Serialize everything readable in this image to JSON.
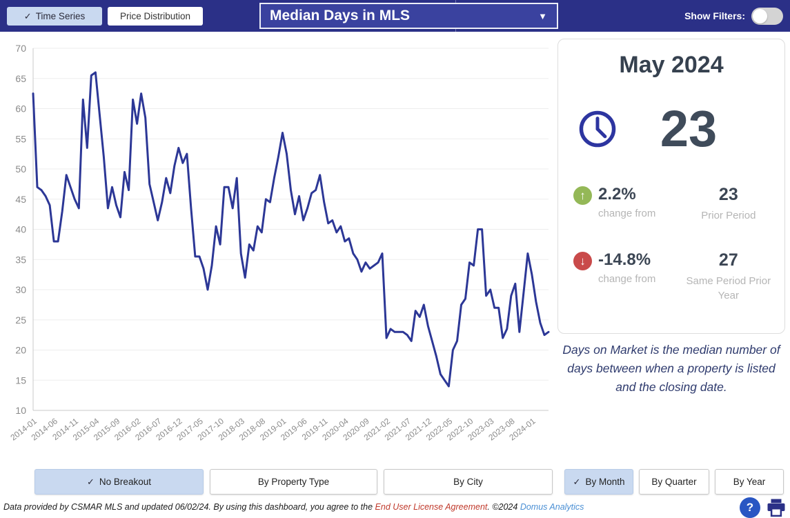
{
  "header": {
    "tabs": [
      {
        "label": "Time Series",
        "checked": true
      },
      {
        "label": "Price Distribution",
        "checked": false
      }
    ],
    "metric_dropdown": {
      "selected": "Median Days in MLS"
    },
    "show_filters_label": "Show Filters:",
    "filters_toggle": "off"
  },
  "icons": {
    "check": "✓",
    "caret_down": "▼",
    "up_arrow": "↑",
    "down_arrow": "↓",
    "help": "?"
  },
  "colors": {
    "header_bg": "#2b3087",
    "selected_button_bg": "#c9d9f0",
    "line": "#2c3796",
    "up": "#94b857",
    "down": "#c94a4a",
    "license_link": "#c0392b",
    "brand_link": "#4a8fd4"
  },
  "chart_data": {
    "type": "line",
    "title": "Median Days in MLS",
    "ylim": [
      10,
      70
    ],
    "ytick_step": 5,
    "xtick_every": 5,
    "grid": true,
    "legend": "none",
    "line_color": "#2c3796",
    "x": [
      "2014-01",
      "2014-02",
      "2014-03",
      "2014-04",
      "2014-05",
      "2014-06",
      "2014-07",
      "2014-08",
      "2014-09",
      "2014-10",
      "2014-11",
      "2014-12",
      "2015-01",
      "2015-02",
      "2015-03",
      "2015-04",
      "2015-05",
      "2015-06",
      "2015-07",
      "2015-08",
      "2015-09",
      "2015-10",
      "2015-11",
      "2015-12",
      "2016-01",
      "2016-02",
      "2016-03",
      "2016-04",
      "2016-05",
      "2016-06",
      "2016-07",
      "2016-08",
      "2016-09",
      "2016-10",
      "2016-11",
      "2016-12",
      "2017-01",
      "2017-02",
      "2017-03",
      "2017-04",
      "2017-05",
      "2017-06",
      "2017-07",
      "2017-08",
      "2017-09",
      "2017-10",
      "2017-11",
      "2017-12",
      "2018-01",
      "2018-02",
      "2018-03",
      "2018-04",
      "2018-05",
      "2018-06",
      "2018-07",
      "2018-08",
      "2018-09",
      "2018-10",
      "2018-11",
      "2018-12",
      "2019-01",
      "2019-02",
      "2019-03",
      "2019-04",
      "2019-05",
      "2019-06",
      "2019-07",
      "2019-08",
      "2019-09",
      "2019-10",
      "2019-11",
      "2019-12",
      "2020-01",
      "2020-02",
      "2020-03",
      "2020-04",
      "2020-05",
      "2020-06",
      "2020-07",
      "2020-08",
      "2020-09",
      "2020-10",
      "2020-11",
      "2020-12",
      "2021-01",
      "2021-02",
      "2021-03",
      "2021-04",
      "2021-05",
      "2021-06",
      "2021-07",
      "2021-08",
      "2021-09",
      "2021-10",
      "2021-11",
      "2021-12",
      "2022-01",
      "2022-02",
      "2022-03",
      "2022-04",
      "2022-05",
      "2022-06",
      "2022-07",
      "2022-08",
      "2022-09",
      "2022-10",
      "2022-11",
      "2022-12",
      "2023-01",
      "2023-02",
      "2023-03",
      "2023-04",
      "2023-05",
      "2023-06",
      "2023-07",
      "2023-08",
      "2023-09",
      "2023-10",
      "2023-11",
      "2023-12",
      "2024-01",
      "2024-02",
      "2024-03",
      "2024-04",
      "2024-05"
    ],
    "values": [
      62.5,
      47,
      46.5,
      45.5,
      44,
      38,
      38,
      43,
      49,
      47,
      45,
      43.5,
      61.5,
      53.5,
      65.5,
      66,
      59,
      52,
      43.5,
      47,
      44,
      42,
      49.5,
      46.5,
      61.5,
      57.5,
      62.5,
      58.5,
      47.5,
      44.5,
      41.5,
      44.5,
      48.5,
      46,
      50.5,
      53.5,
      51,
      52.5,
      43.5,
      35.5,
      35.5,
      33.5,
      30,
      34,
      40.5,
      37.5,
      47,
      47,
      43.5,
      48.5,
      36,
      32,
      37.5,
      36.5,
      40.5,
      39.5,
      45,
      44.5,
      48.5,
      52,
      56,
      52.5,
      46.5,
      42.5,
      45.5,
      41.5,
      43.5,
      46,
      46.5,
      49,
      44.5,
      41,
      41.5,
      39.5,
      40.5,
      38,
      38.5,
      36,
      35,
      33,
      34.5,
      33.5,
      34,
      34.5,
      36,
      22,
      23.5,
      23,
      23,
      23,
      22.5,
      21.5,
      26.5,
      25.5,
      27.5,
      24,
      21.5,
      19,
      16,
      15,
      14,
      20,
      21.5,
      27.5,
      28.5,
      34.5,
      34,
      40,
      40,
      29,
      30,
      27,
      27,
      22,
      23.5,
      29,
      31,
      23,
      29.5,
      36,
      32.5,
      28,
      24.5,
      22.5,
      23
    ]
  },
  "stats_panel": {
    "month_title": "May 2024",
    "current_value": "23",
    "comparisons": [
      {
        "direction": "up",
        "pct": "2.2%",
        "pct_label": "change from",
        "value": "23",
        "value_label": "Prior Period"
      },
      {
        "direction": "down",
        "pct": "-14.8%",
        "pct_label": "change from",
        "value": "27",
        "value_label": "Same Period Prior Year"
      }
    ],
    "description": "Days on Market is the median number of days between when a property is listed and the closing date."
  },
  "breakout_buttons": [
    {
      "label": "No Breakout",
      "checked": true
    },
    {
      "label": "By Property Type",
      "checked": false
    },
    {
      "label": "By City",
      "checked": false
    }
  ],
  "period_buttons": [
    {
      "label": "By Month",
      "checked": true
    },
    {
      "label": "By Quarter",
      "checked": false
    },
    {
      "label": "By Year",
      "checked": false
    }
  ],
  "footer": {
    "text_before_link": "Data provided by CSMAR MLS and updated 06/02/24.  By using this dashboard, you agree to the ",
    "license_link": "End User License Agreement",
    "text_middle": ".  ©2024 ",
    "brand_link": "Domus Analytics"
  }
}
